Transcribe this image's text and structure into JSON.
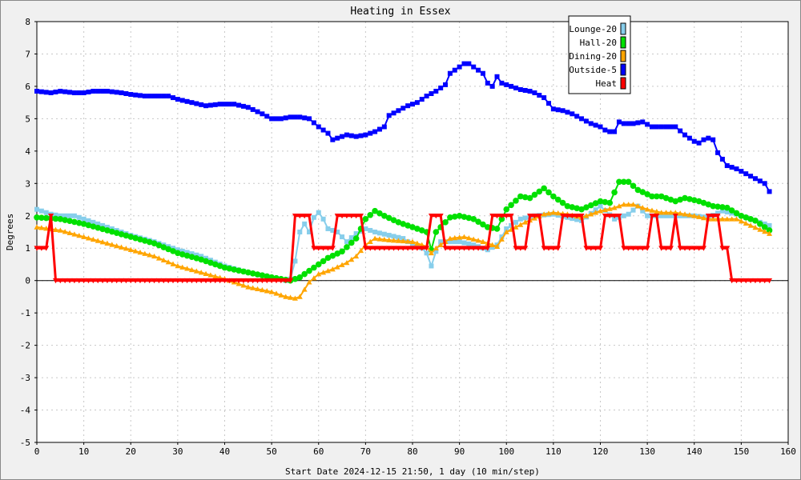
{
  "chart_data": {
    "type": "line",
    "title": "Heating in Essex",
    "xlabel": "Start Date 2024-12-15 21:50, 1 day (10 min/step)",
    "ylabel": "Degrees",
    "xlim": [
      0,
      160
    ],
    "ylim": [
      -5,
      8
    ],
    "x_ticks": [
      0,
      10,
      20,
      30,
      40,
      50,
      60,
      70,
      80,
      90,
      100,
      110,
      120,
      130,
      140,
      150,
      160
    ],
    "y_ticks": [
      -5,
      -4,
      -3,
      -2,
      -1,
      0,
      1,
      2,
      3,
      4,
      5,
      6,
      7,
      8
    ],
    "grid": true,
    "legend_position": "top-right",
    "series": [
      {
        "name": "Lounge-20",
        "color": "#87ceeb",
        "marker": "square",
        "points": [
          [
            0,
            2.2
          ],
          [
            3,
            2.05
          ],
          [
            5,
            2.0
          ],
          [
            8,
            2.0
          ],
          [
            12,
            1.8
          ],
          [
            16,
            1.6
          ],
          [
            20,
            1.4
          ],
          [
            25,
            1.2
          ],
          [
            30,
            0.95
          ],
          [
            35,
            0.75
          ],
          [
            40,
            0.45
          ],
          [
            45,
            0.25
          ],
          [
            50,
            0.1
          ],
          [
            53,
            0.0
          ],
          [
            54,
            0.05
          ],
          [
            55,
            0.6
          ],
          [
            56,
            1.5
          ],
          [
            57,
            1.75
          ],
          [
            58,
            1.5
          ],
          [
            59,
            1.95
          ],
          [
            60,
            2.1
          ],
          [
            61,
            1.9
          ],
          [
            62,
            1.6
          ],
          [
            64,
            1.5
          ],
          [
            66,
            1.2
          ],
          [
            68,
            1.45
          ],
          [
            70,
            1.6
          ],
          [
            72,
            1.5
          ],
          [
            75,
            1.4
          ],
          [
            78,
            1.3
          ],
          [
            80,
            1.1
          ],
          [
            82,
            1.0
          ],
          [
            83,
            0.85
          ],
          [
            84,
            0.45
          ],
          [
            85,
            0.9
          ],
          [
            86,
            1.2
          ],
          [
            88,
            1.2
          ],
          [
            90,
            1.2
          ],
          [
            93,
            1.1
          ],
          [
            96,
            0.95
          ],
          [
            98,
            1.1
          ],
          [
            100,
            1.6
          ],
          [
            103,
            1.9
          ],
          [
            106,
            2.0
          ],
          [
            110,
            2.05
          ],
          [
            113,
            1.95
          ],
          [
            116,
            1.85
          ],
          [
            120,
            2.3
          ],
          [
            123,
            1.9
          ],
          [
            126,
            2.05
          ],
          [
            128,
            2.3
          ],
          [
            130,
            2.0
          ],
          [
            133,
            2.0
          ],
          [
            136,
            2.0
          ],
          [
            140,
            2.0
          ],
          [
            143,
            1.95
          ],
          [
            146,
            2.15
          ],
          [
            149,
            2.05
          ],
          [
            152,
            1.9
          ],
          [
            156,
            1.7
          ]
        ]
      },
      {
        "name": "Hall-20",
        "color": "#00e000",
        "marker": "circle",
        "points": [
          [
            0,
            1.95
          ],
          [
            5,
            1.9
          ],
          [
            10,
            1.75
          ],
          [
            15,
            1.55
          ],
          [
            20,
            1.35
          ],
          [
            25,
            1.15
          ],
          [
            30,
            0.85
          ],
          [
            35,
            0.65
          ],
          [
            40,
            0.4
          ],
          [
            45,
            0.25
          ],
          [
            50,
            0.1
          ],
          [
            54,
            0.0
          ],
          [
            56,
            0.1
          ],
          [
            58,
            0.3
          ],
          [
            60,
            0.5
          ],
          [
            62,
            0.7
          ],
          [
            65,
            0.9
          ],
          [
            68,
            1.3
          ],
          [
            70,
            1.9
          ],
          [
            72,
            2.15
          ],
          [
            74,
            2.0
          ],
          [
            77,
            1.8
          ],
          [
            80,
            1.65
          ],
          [
            83,
            1.5
          ],
          [
            84,
            0.95
          ],
          [
            85,
            1.5
          ],
          [
            88,
            1.95
          ],
          [
            90,
            2.0
          ],
          [
            93,
            1.9
          ],
          [
            96,
            1.65
          ],
          [
            98,
            1.6
          ],
          [
            100,
            2.2
          ],
          [
            103,
            2.6
          ],
          [
            105,
            2.55
          ],
          [
            107,
            2.75
          ],
          [
            108,
            2.85
          ],
          [
            110,
            2.6
          ],
          [
            113,
            2.3
          ],
          [
            116,
            2.2
          ],
          [
            120,
            2.45
          ],
          [
            122,
            2.4
          ],
          [
            124,
            3.05
          ],
          [
            126,
            3.05
          ],
          [
            128,
            2.8
          ],
          [
            131,
            2.6
          ],
          [
            133,
            2.6
          ],
          [
            136,
            2.45
          ],
          [
            138,
            2.55
          ],
          [
            141,
            2.45
          ],
          [
            144,
            2.3
          ],
          [
            147,
            2.25
          ],
          [
            150,
            2.0
          ],
          [
            153,
            1.85
          ],
          [
            156,
            1.55
          ]
        ]
      },
      {
        "name": "Dining-20",
        "color": "#ffa500",
        "marker": "triangle",
        "points": [
          [
            0,
            1.65
          ],
          [
            5,
            1.55
          ],
          [
            10,
            1.35
          ],
          [
            15,
            1.15
          ],
          [
            20,
            0.95
          ],
          [
            25,
            0.75
          ],
          [
            30,
            0.45
          ],
          [
            35,
            0.25
          ],
          [
            40,
            0.05
          ],
          [
            45,
            -0.2
          ],
          [
            50,
            -0.35
          ],
          [
            53,
            -0.5
          ],
          [
            55,
            -0.55
          ],
          [
            56,
            -0.5
          ],
          [
            58,
            -0.05
          ],
          [
            60,
            0.2
          ],
          [
            63,
            0.35
          ],
          [
            66,
            0.55
          ],
          [
            68,
            0.75
          ],
          [
            70,
            1.1
          ],
          [
            72,
            1.3
          ],
          [
            75,
            1.25
          ],
          [
            80,
            1.2
          ],
          [
            83,
            1.05
          ],
          [
            84,
            0.85
          ],
          [
            85,
            1.0
          ],
          [
            88,
            1.3
          ],
          [
            91,
            1.35
          ],
          [
            95,
            1.2
          ],
          [
            98,
            1.05
          ],
          [
            100,
            1.5
          ],
          [
            104,
            1.8
          ],
          [
            108,
            2.05
          ],
          [
            110,
            2.1
          ],
          [
            113,
            2.05
          ],
          [
            116,
            1.95
          ],
          [
            120,
            2.15
          ],
          [
            123,
            2.25
          ],
          [
            125,
            2.35
          ],
          [
            127,
            2.35
          ],
          [
            130,
            2.2
          ],
          [
            133,
            2.1
          ],
          [
            136,
            2.1
          ],
          [
            140,
            2.0
          ],
          [
            143,
            1.9
          ],
          [
            146,
            1.9
          ],
          [
            149,
            1.9
          ],
          [
            152,
            1.7
          ],
          [
            156,
            1.45
          ]
        ]
      },
      {
        "name": "Outside-5",
        "color": "#0000ff",
        "marker": "square",
        "points": [
          [
            0,
            5.85
          ],
          [
            3,
            5.8
          ],
          [
            5,
            5.85
          ],
          [
            8,
            5.8
          ],
          [
            10,
            5.8
          ],
          [
            12,
            5.85
          ],
          [
            15,
            5.85
          ],
          [
            18,
            5.8
          ],
          [
            20,
            5.75
          ],
          [
            23,
            5.7
          ],
          [
            26,
            5.7
          ],
          [
            28,
            5.7
          ],
          [
            30,
            5.6
          ],
          [
            33,
            5.5
          ],
          [
            36,
            5.4
          ],
          [
            39,
            5.45
          ],
          [
            42,
            5.45
          ],
          [
            45,
            5.35
          ],
          [
            48,
            5.15
          ],
          [
            50,
            5.0
          ],
          [
            52,
            5.0
          ],
          [
            54,
            5.05
          ],
          [
            56,
            5.05
          ],
          [
            58,
            5.0
          ],
          [
            60,
            4.75
          ],
          [
            62,
            4.55
          ],
          [
            63,
            4.35
          ],
          [
            64,
            4.4
          ],
          [
            66,
            4.5
          ],
          [
            68,
            4.45
          ],
          [
            70,
            4.5
          ],
          [
            72,
            4.6
          ],
          [
            74,
            4.75
          ],
          [
            75,
            5.1
          ],
          [
            77,
            5.25
          ],
          [
            79,
            5.4
          ],
          [
            81,
            5.5
          ],
          [
            83,
            5.7
          ],
          [
            85,
            5.85
          ],
          [
            87,
            6.05
          ],
          [
            88,
            6.4
          ],
          [
            90,
            6.6
          ],
          [
            91,
            6.7
          ],
          [
            92,
            6.7
          ],
          [
            94,
            6.5
          ],
          [
            95,
            6.4
          ],
          [
            96,
            6.1
          ],
          [
            97,
            6.0
          ],
          [
            98,
            6.3
          ],
          [
            99,
            6.1
          ],
          [
            101,
            6.0
          ],
          [
            103,
            5.9
          ],
          [
            105,
            5.85
          ],
          [
            106,
            5.8
          ],
          [
            108,
            5.65
          ],
          [
            110,
            5.3
          ],
          [
            112,
            5.25
          ],
          [
            114,
            5.15
          ],
          [
            116,
            5.0
          ],
          [
            118,
            4.85
          ],
          [
            120,
            4.75
          ],
          [
            121,
            4.65
          ],
          [
            122,
            4.6
          ],
          [
            123,
            4.6
          ],
          [
            124,
            4.9
          ],
          [
            125,
            4.85
          ],
          [
            127,
            4.85
          ],
          [
            129,
            4.9
          ],
          [
            131,
            4.75
          ],
          [
            133,
            4.75
          ],
          [
            135,
            4.75
          ],
          [
            136,
            4.75
          ],
          [
            138,
            4.5
          ],
          [
            140,
            4.3
          ],
          [
            141,
            4.25
          ],
          [
            142,
            4.35
          ],
          [
            143,
            4.4
          ],
          [
            144,
            4.35
          ],
          [
            145,
            3.95
          ],
          [
            146,
            3.75
          ],
          [
            147,
            3.55
          ],
          [
            149,
            3.45
          ],
          [
            151,
            3.3
          ],
          [
            153,
            3.15
          ],
          [
            155,
            3.0
          ],
          [
            156,
            2.75
          ]
        ]
      },
      {
        "name": "Heat",
        "color": "#ff0000",
        "marker": "triangle-down",
        "points": [
          [
            0,
            1.0
          ],
          [
            2,
            1.0
          ],
          [
            3,
            2.0
          ],
          [
            4,
            0.0
          ],
          [
            6,
            0.0
          ],
          [
            54,
            0.0
          ],
          [
            55,
            2.0
          ],
          [
            58,
            2.0
          ],
          [
            59,
            1.0
          ],
          [
            63,
            1.0
          ],
          [
            64,
            2.0
          ],
          [
            69,
            2.0
          ],
          [
            70,
            1.0
          ],
          [
            83,
            1.0
          ],
          [
            84,
            2.0
          ],
          [
            86,
            2.0
          ],
          [
            87,
            1.0
          ],
          [
            96,
            1.0
          ],
          [
            97,
            2.0
          ],
          [
            101,
            2.0
          ],
          [
            102,
            1.0
          ],
          [
            104,
            1.0
          ],
          [
            105,
            2.0
          ],
          [
            107,
            2.0
          ],
          [
            108,
            1.0
          ],
          [
            111,
            1.0
          ],
          [
            112,
            2.0
          ],
          [
            116,
            2.0
          ],
          [
            117,
            1.0
          ],
          [
            120,
            1.0
          ],
          [
            121,
            2.0
          ],
          [
            124,
            2.0
          ],
          [
            125,
            1.0
          ],
          [
            130,
            1.0
          ],
          [
            131,
            2.0
          ],
          [
            132,
            2.0
          ],
          [
            133,
            1.0
          ],
          [
            135,
            1.0
          ],
          [
            136,
            2.0
          ],
          [
            137,
            1.0
          ],
          [
            142,
            1.0
          ],
          [
            143,
            2.0
          ],
          [
            145,
            2.0
          ],
          [
            146,
            1.0
          ],
          [
            147,
            1.0
          ],
          [
            148,
            0.0
          ],
          [
            156,
            0.0
          ]
        ]
      }
    ]
  }
}
